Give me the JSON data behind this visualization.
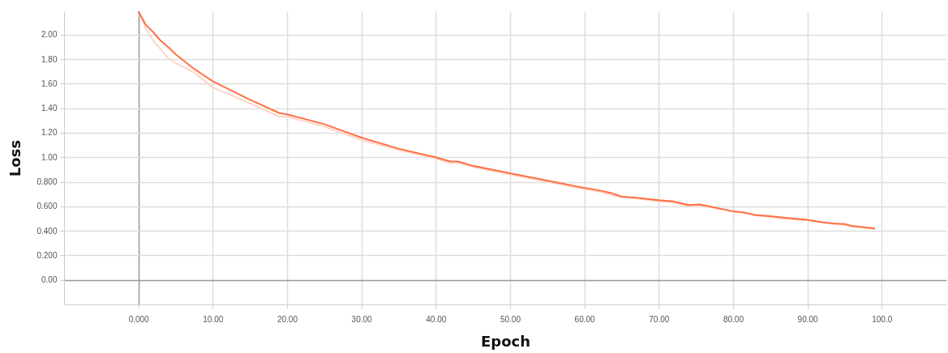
{
  "chart_data": {
    "type": "line",
    "xlabel": "Epoch",
    "ylabel": "Loss",
    "x": [
      0,
      1,
      2,
      3,
      4,
      5,
      7.5,
      10,
      15,
      19,
      20,
      25,
      30,
      35,
      40,
      42,
      43,
      45,
      50,
      55,
      60,
      62,
      63.5,
      65,
      67,
      70,
      72,
      74,
      75.5,
      80,
      81.5,
      83,
      85,
      86.5,
      90,
      92,
      93.5,
      95,
      96,
      99
    ],
    "series": [
      {
        "color": "#ffd5c8",
        "values": [
          2.19,
          2.05,
          1.95,
          1.88,
          1.81,
          1.77,
          1.69,
          1.57,
          1.44,
          1.33,
          1.33,
          1.25,
          1.14,
          1.06,
          0.99,
          0.95,
          0.955,
          0.92,
          0.86,
          0.8,
          0.74,
          0.72,
          0.695,
          0.675,
          0.665,
          0.64,
          0.63,
          0.6,
          0.61,
          0.555,
          0.55,
          0.525,
          0.515,
          0.5,
          0.485,
          0.47,
          0.455,
          0.45,
          0.435,
          0.415
        ]
      },
      {
        "color": "#ff7043",
        "values": [
          2.19,
          2.08,
          2.02,
          1.95,
          1.9,
          1.84,
          1.72,
          1.62,
          1.47,
          1.36,
          1.35,
          1.27,
          1.16,
          1.07,
          1.0,
          0.965,
          0.965,
          0.93,
          0.87,
          0.81,
          0.75,
          0.73,
          0.71,
          0.68,
          0.67,
          0.65,
          0.64,
          0.61,
          0.615,
          0.56,
          0.55,
          0.53,
          0.52,
          0.51,
          0.49,
          0.47,
          0.46,
          0.455,
          0.44,
          0.42
        ]
      }
    ],
    "xlim": [
      -10,
      108.7
    ],
    "ylim": [
      -0.2,
      2.19
    ],
    "xticks": [
      {
        "value": 0,
        "label": "0.000"
      },
      {
        "value": 10,
        "label": "10.00"
      },
      {
        "value": 20,
        "label": "20.00"
      },
      {
        "value": 30,
        "label": "30.00"
      },
      {
        "value": 40,
        "label": "40.00"
      },
      {
        "value": 50,
        "label": "50.00"
      },
      {
        "value": 60,
        "label": "60.00"
      },
      {
        "value": 70,
        "label": "70.00"
      },
      {
        "value": 80,
        "label": "80.00"
      },
      {
        "value": 90,
        "label": "90.00"
      },
      {
        "value": 100,
        "label": "100.0"
      }
    ],
    "yticks": [
      {
        "value": 0,
        "label": "0.00"
      },
      {
        "value": 0.2,
        "label": "0.200"
      },
      {
        "value": 0.4,
        "label": "0.400"
      },
      {
        "value": 0.6,
        "label": "0.600"
      },
      {
        "value": 0.8,
        "label": "0.800"
      },
      {
        "value": 1,
        "label": "1.00"
      },
      {
        "value": 1.2,
        "label": "1.20"
      },
      {
        "value": 1.4,
        "label": "1.40"
      },
      {
        "value": 1.6,
        "label": "1.60"
      },
      {
        "value": 1.8,
        "label": "1.80"
      },
      {
        "value": 2,
        "label": "2.00"
      }
    ],
    "grid": true
  }
}
